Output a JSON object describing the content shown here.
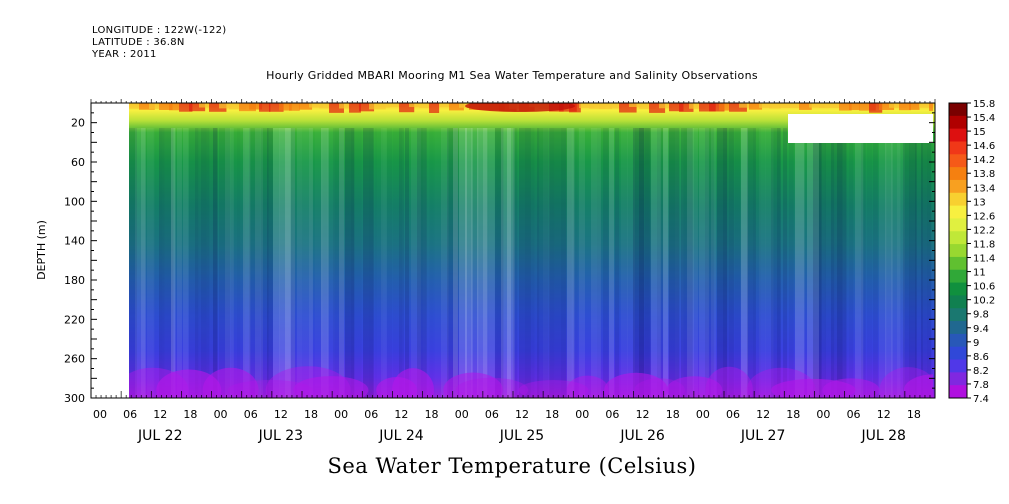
{
  "header": {
    "longitude": "LONGITUDE : 122W(-122)",
    "latitude": "LATITUDE : 36.8N",
    "year": "YEAR : 2011"
  },
  "chart_data": {
    "type": "heatmap",
    "title": "Hourly Gridded MBARI Mooring M1 Sea Water Temperature and Salinity Observations",
    "xlabel": "Sea Water Temperature (Celsius)",
    "ylabel": "DEPTH (m)",
    "ylim": [
      300,
      0
    ],
    "y_ticks": [
      20,
      60,
      100,
      140,
      180,
      220,
      260,
      300
    ],
    "x_hour_ticks": [
      "00",
      "06",
      "12",
      "18",
      "00",
      "06",
      "12",
      "18",
      "00",
      "06",
      "12",
      "18",
      "00",
      "06",
      "12",
      "18",
      "00",
      "06",
      "12",
      "18",
      "00",
      "06",
      "12",
      "18",
      "00",
      "06",
      "12",
      "18"
    ],
    "x_day_labels": [
      "JUL 22",
      "JUL 23",
      "JUL 24",
      "JUL 25",
      "JUL 26",
      "JUL 27",
      "JUL 28"
    ],
    "data_start": "2011-07-22 06:00",
    "missing_region": "2011-07-27 18:00 to 2011-07-28 23:00, depth ~10-40 m",
    "depth_profile": {
      "depth": [
        10,
        20,
        30,
        40,
        60,
        100,
        140,
        180,
        220,
        260,
        280,
        300
      ],
      "temperature": [
        13.4,
        12.4,
        11.2,
        10.4,
        10.0,
        9.6,
        9.1,
        8.7,
        8.4,
        8.0,
        7.8,
        7.6
      ]
    },
    "surface_max": {
      "x": "2011-07-25 06:00",
      "depth": 5,
      "temperature": 15.6
    },
    "colorbar": {
      "labels": [
        "15.8",
        "15.4",
        "15",
        "14.6",
        "14.2",
        "13.8",
        "13.4",
        "13",
        "12.6",
        "12.2",
        "11.8",
        "11.4",
        "11",
        "10.6",
        "10.2",
        "9.8",
        "9.4",
        "9",
        "8.6",
        "8.2",
        "7.8",
        "7.4"
      ],
      "colors": [
        "#7a0000",
        "#b00000",
        "#dd1010",
        "#f03818",
        "#f55a18",
        "#f58010",
        "#f8a020",
        "#f8d030",
        "#f8f040",
        "#e0f040",
        "#c0e838",
        "#98d830",
        "#60c030",
        "#30a838",
        "#10903e",
        "#108050",
        "#1a7870",
        "#206890",
        "#2858b8",
        "#3048d8",
        "#5038e8",
        "#8028e0",
        "#b010e0"
      ]
    },
    "grid": false
  }
}
